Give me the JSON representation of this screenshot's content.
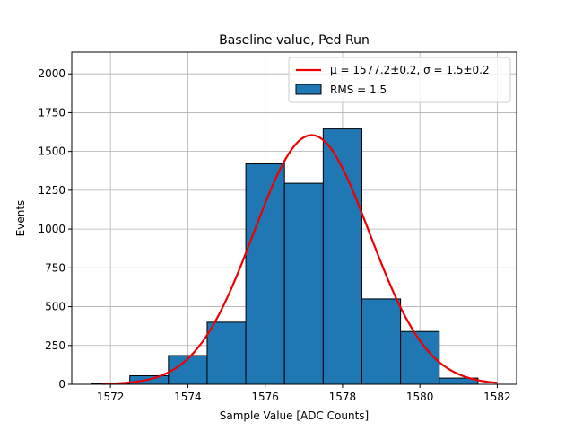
{
  "chart_data": {
    "type": "bar",
    "title": "Baseline value, Ped Run",
    "xlabel": "Sample Value [ADC Counts]",
    "ylabel": "Events",
    "xlim": [
      1571.0,
      1582.5
    ],
    "ylim": [
      0,
      2140
    ],
    "grid": true,
    "legend_position": "top-right",
    "x_ticks": [
      1572,
      1574,
      1576,
      1578,
      1580,
      1582
    ],
    "y_ticks": [
      0,
      250,
      500,
      750,
      1000,
      1250,
      1500,
      1750,
      2000
    ],
    "bins": {
      "edges": [
        1571.5,
        1572.5,
        1573.5,
        1574.5,
        1575.5,
        1576.5,
        1577.5,
        1578.5,
        1579.5,
        1580.5,
        1581.5
      ],
      "counts": [
        5,
        55,
        185,
        400,
        1420,
        1295,
        1645,
        550,
        340,
        40
      ],
      "color": "#1f77b4",
      "edgecolor": "#000000",
      "name": "RMS = 1.5"
    },
    "fit": {
      "name": "μ = 1577.2±0.2, σ = 1.5±0.2",
      "mu": 1577.2,
      "sigma": 1.5,
      "amplitude": 1605,
      "x_range": [
        1571.8,
        1582.0
      ],
      "color": "#ee0000"
    }
  }
}
